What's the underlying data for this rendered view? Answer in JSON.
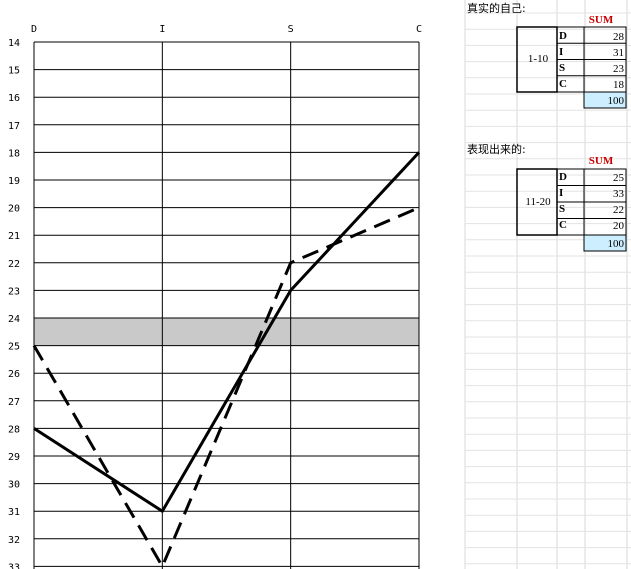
{
  "chart_data": {
    "type": "line",
    "categories": [
      "D",
      "I",
      "S",
      "C"
    ],
    "ylim": [
      14,
      33
    ],
    "y_inverted": true,
    "yticks": [
      14,
      15,
      16,
      17,
      18,
      19,
      20,
      21,
      22,
      23,
      24,
      25,
      26,
      27,
      28,
      29,
      30,
      31,
      32,
      33
    ],
    "highlight_band": [
      24,
      25
    ],
    "grid": true,
    "series": [
      {
        "style": "solid",
        "values": [
          28,
          31,
          23,
          18
        ]
      },
      {
        "style": "dashed",
        "values": [
          25,
          33,
          22,
          20
        ]
      }
    ]
  },
  "sheet": {
    "sections": [
      {
        "title": "真实的自己:",
        "sum_label": "SUM",
        "range": "1-10",
        "rows": [
          {
            "letter": "D",
            "value": "28"
          },
          {
            "letter": "I",
            "value": "31"
          },
          {
            "letter": "S",
            "value": "23"
          },
          {
            "letter": "C",
            "value": "18"
          }
        ],
        "total": "100"
      },
      {
        "title": "表现出来的:",
        "sum_label": "SUM",
        "range": "11-20",
        "rows": [
          {
            "letter": "D",
            "value": "25"
          },
          {
            "letter": "I",
            "value": "33"
          },
          {
            "letter": "S",
            "value": "22"
          },
          {
            "letter": "C",
            "value": "20"
          }
        ],
        "total": "100"
      }
    ]
  }
}
